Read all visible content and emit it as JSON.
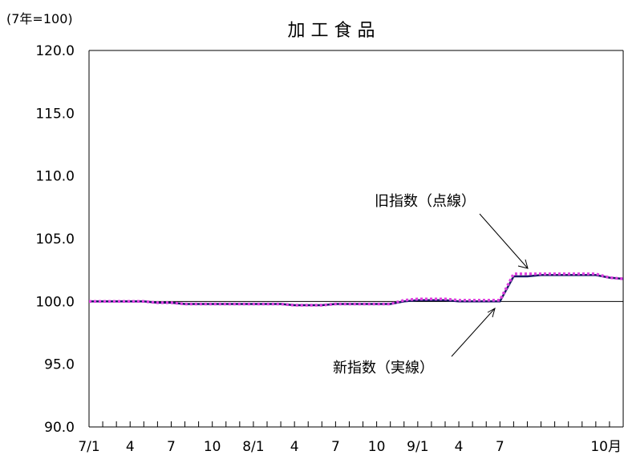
{
  "chart_data": {
    "type": "line",
    "title": "加 工 食 品",
    "unit_label": "(7年=100)",
    "ylim": [
      90.0,
      120.0
    ],
    "y_ticks": [
      "120.0",
      "115.0",
      "110.0",
      "105.0",
      "100.0",
      "95.0",
      "90.0"
    ],
    "x_tick_labels": [
      "7/1",
      "4",
      "7",
      "10",
      "8/1",
      "4",
      "7",
      "10",
      "9/1",
      "4",
      "7",
      "10月"
    ],
    "grid": false,
    "reference_line": 100.0,
    "series": [
      {
        "key": "new",
        "color": "#1a1a66",
        "style": "solid",
        "values": [
          100.0,
          100.0,
          100.0,
          100.0,
          100.0,
          99.9,
          99.9,
          99.8,
          99.8,
          99.8,
          99.8,
          99.8,
          99.8,
          99.8,
          99.8,
          99.7,
          99.7,
          99.7,
          99.8,
          99.8,
          99.8,
          99.8,
          99.8,
          100.0,
          100.1,
          100.1,
          100.1,
          100.0,
          100.0,
          100.0,
          100.0,
          102.0,
          102.0,
          102.1,
          102.1,
          102.1,
          102.1,
          102.1,
          101.9,
          101.8
        ]
      },
      {
        "key": "old",
        "color": "#e040e0",
        "style": "dotted",
        "values": [
          100.0,
          100.0,
          100.0,
          100.0,
          100.0,
          99.9,
          99.9,
          99.8,
          99.8,
          99.8,
          99.8,
          99.8,
          99.8,
          99.8,
          99.8,
          99.7,
          99.7,
          99.7,
          99.8,
          99.8,
          99.8,
          99.8,
          99.8,
          100.1,
          100.2,
          100.2,
          100.2,
          100.1,
          100.1,
          100.1,
          100.1,
          102.2,
          102.2,
          102.2,
          102.2,
          102.2,
          102.2,
          102.2,
          101.9,
          101.8
        ]
      }
    ],
    "annotations": {
      "old": "旧指数（点線）",
      "new": "新指数（実線）"
    }
  }
}
